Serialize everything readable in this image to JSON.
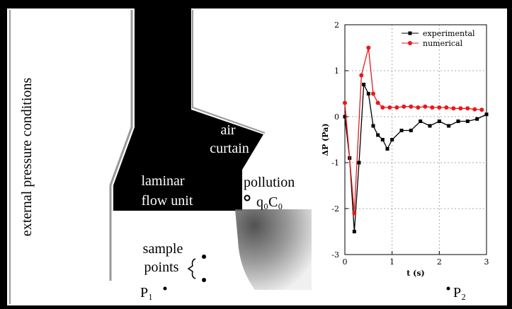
{
  "diagram": {
    "external": "external pressure conditions",
    "air_curtain": [
      "air",
      "curtain"
    ],
    "laminar": [
      "laminar",
      "flow unit"
    ],
    "pollution": "pollution",
    "source": "q₀C₀",
    "sample": [
      "sample",
      "points"
    ],
    "p1": "P₁",
    "p2": "P₂"
  },
  "chart_data": {
    "type": "line",
    "xlabel": "t (s)",
    "ylabel": "ΔP (Pa)",
    "xlim": [
      0,
      3
    ],
    "ylim": [
      -3,
      2
    ],
    "xticks": [
      0,
      1,
      2,
      3
    ],
    "yticks": [
      -3,
      -2,
      -1,
      0,
      1,
      2
    ],
    "grid": true,
    "legend": "upper right",
    "series": [
      {
        "name": "experimental",
        "color": "#000000",
        "marker": "square",
        "x": [
          0,
          0.1,
          0.2,
          0.3,
          0.4,
          0.5,
          0.6,
          0.7,
          0.8,
          0.9,
          1.0,
          1.2,
          1.4,
          1.6,
          1.8,
          2.0,
          2.2,
          2.4,
          2.6,
          2.8,
          3.0
        ],
        "values": [
          0,
          -0.9,
          -2.5,
          -1.0,
          0.7,
          0.5,
          -0.2,
          -0.4,
          -0.5,
          -0.7,
          -0.5,
          -0.3,
          -0.3,
          -0.1,
          -0.2,
          -0.1,
          -0.2,
          -0.1,
          -0.1,
          -0.05,
          0.05
        ]
      },
      {
        "name": "numerical",
        "color": "#e8191b",
        "marker": "circle",
        "x": [
          0,
          0.2,
          0.35,
          0.5,
          0.6,
          0.7,
          0.8,
          0.95,
          1.1,
          1.25,
          1.4,
          1.55,
          1.7,
          1.85,
          2.0,
          2.15,
          2.3,
          2.45,
          2.6,
          2.75,
          2.9
        ],
        "values": [
          0.3,
          -2.1,
          0.9,
          1.5,
          0.5,
          0.3,
          0.2,
          0.2,
          0.2,
          0.22,
          0.22,
          0.2,
          0.22,
          0.2,
          0.2,
          0.2,
          0.18,
          0.18,
          0.18,
          0.16,
          0.15
        ]
      }
    ]
  }
}
